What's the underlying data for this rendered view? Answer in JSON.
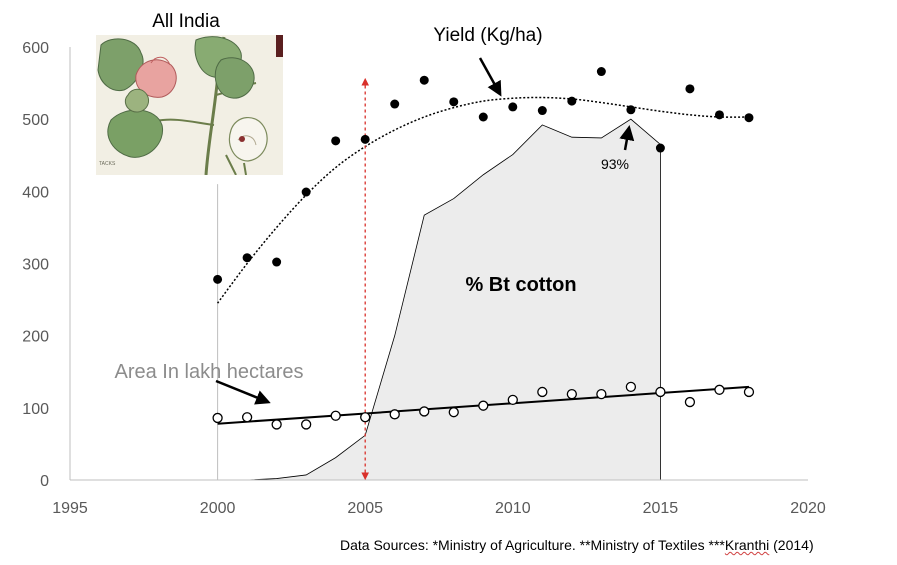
{
  "chart_data": {
    "type": "scatter",
    "title": "All India",
    "xlim": [
      1995,
      2020
    ],
    "ylim": [
      0,
      600
    ],
    "x_ticks": [
      "1995",
      "2000",
      "2005",
      "2010",
      "2015",
      "2020"
    ],
    "y_ticks": [
      "0",
      "100",
      "200",
      "300",
      "400",
      "500",
      "600"
    ],
    "grid": false,
    "series": [
      {
        "name": "Yield (Kg/ha)",
        "marker": "filled-circle",
        "color": "#000000",
        "points": [
          [
            2000,
            278
          ],
          [
            2001,
            308
          ],
          [
            2002,
            302
          ],
          [
            2003,
            399
          ],
          [
            2004,
            470
          ],
          [
            2005,
            472
          ],
          [
            2006,
            521
          ],
          [
            2007,
            554
          ],
          [
            2008,
            524
          ],
          [
            2009,
            503
          ],
          [
            2010,
            517
          ],
          [
            2011,
            512
          ],
          [
            2012,
            525
          ],
          [
            2013,
            566
          ],
          [
            2014,
            513
          ],
          [
            2015,
            460
          ],
          [
            2016,
            542
          ],
          [
            2017,
            506
          ],
          [
            2018,
            502
          ]
        ]
      },
      {
        "name": "Area In lakh hectares",
        "marker": "open-circle",
        "color": "#000000",
        "points": [
          [
            2000,
            86
          ],
          [
            2001,
            87
          ],
          [
            2002,
            77
          ],
          [
            2003,
            77
          ],
          [
            2004,
            89
          ],
          [
            2005,
            87
          ],
          [
            2006,
            91
          ],
          [
            2007,
            95
          ],
          [
            2008,
            94
          ],
          [
            2009,
            103
          ],
          [
            2010,
            111
          ],
          [
            2011,
            122
          ],
          [
            2012,
            119
          ],
          [
            2013,
            119
          ],
          [
            2014,
            129
          ],
          [
            2015,
            122
          ],
          [
            2016,
            108
          ],
          [
            2017,
            125
          ],
          [
            2018,
            122
          ]
        ]
      },
      {
        "name": "% Bt cotton",
        "type": "area",
        "color": "#ececec",
        "points": [
          [
            2000,
            0
          ],
          [
            2001,
            0
          ],
          [
            2002,
            2
          ],
          [
            2003,
            7
          ],
          [
            2004,
            31
          ],
          [
            2005,
            62
          ],
          [
            2006,
            200
          ],
          [
            2007,
            367
          ],
          [
            2008,
            390
          ],
          [
            2009,
            423
          ],
          [
            2010,
            451
          ],
          [
            2011,
            492
          ],
          [
            2012,
            475
          ],
          [
            2013,
            474
          ],
          [
            2014,
            500
          ],
          [
            2015,
            465
          ],
          [
            2015,
            0
          ]
        ]
      }
    ],
    "yield_trend": [
      [
        2000,
        245
      ],
      [
        2001,
        300
      ],
      [
        2002,
        350
      ],
      [
        2003,
        395
      ],
      [
        2004,
        433
      ],
      [
        2005,
        462
      ],
      [
        2006,
        485
      ],
      [
        2007,
        503
      ],
      [
        2008,
        516
      ],
      [
        2009,
        525
      ],
      [
        2010,
        529
      ],
      [
        2011,
        530
      ],
      [
        2012,
        528
      ],
      [
        2013,
        523
      ],
      [
        2014,
        517
      ],
      [
        2015,
        511
      ],
      [
        2016,
        506
      ],
      [
        2017,
        503
      ],
      [
        2018,
        503
      ]
    ],
    "area_trend": [
      [
        2000,
        78
      ],
      [
        2018,
        129
      ]
    ],
    "marker_line_x": 2005,
    "annotations": {
      "yield_label": "Yield (Kg/ha)",
      "area_label": "Area In lakh hectares",
      "bt_label": "% Bt cotton",
      "pct_label": "93%"
    }
  },
  "footer": {
    "prefix": "Data Sources: *Ministry of Agriculture. **Ministry of Textiles ***",
    "author": "Kranthi",
    "suffix": " (2014)"
  },
  "colors": {
    "axis": "#bfbfbf",
    "tick_text": "#595959",
    "area_label": "#8c8c8c",
    "marker_line": "#d9302a",
    "bt_fill": "#ececec"
  },
  "image": {
    "icon": "cotton-plant-illustration"
  }
}
